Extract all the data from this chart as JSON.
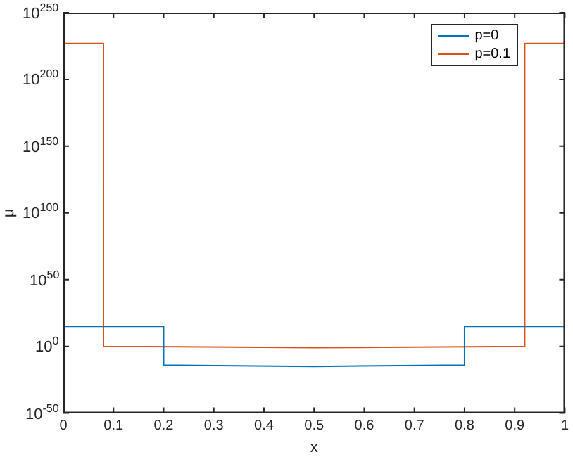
{
  "chart_data": {
    "type": "line",
    "xlabel": "x",
    "ylabel": "μ",
    "log": "y",
    "legend": "top right",
    "xlim": [
      0,
      1
    ],
    "xticks": [
      0,
      0.1,
      0.2,
      0.3,
      0.4,
      0.5,
      0.6,
      0.7,
      0.8,
      0.9,
      1
    ],
    "ylim": [
      1e-50,
      1e+250
    ],
    "yticks": [
      {
        "value": 1e-50,
        "label": "10$^{-50}$"
      },
      {
        "value": 1,
        "label": "10$^{0}$"
      },
      {
        "value": 1e+50,
        "label": "10$^{50}$"
      },
      {
        "value": 1e+100,
        "label": "10$^{100}$"
      },
      {
        "value": 1e+150,
        "label": "10$^{150}$"
      },
      {
        "value": 1e+200,
        "label": "10$^{200}$"
      },
      {
        "value": 1e+250,
        "label": "10$^{250}$"
      }
    ],
    "series": [
      {
        "name": "p=0",
        "color": "#0072bd",
        "x": [
          0,
          0.2,
          0.2,
          0.5,
          0.8,
          0.8,
          1
        ],
        "values": [
          1000000000000000.0,
          1000000000000000.0,
          1e-14,
          1e-15,
          1e-14,
          1000000000000000.0,
          1000000000000000.0
        ]
      },
      {
        "name": "p=0.1",
        "color": "#d95319",
        "x": [
          0,
          0.08,
          0.08,
          0.5,
          0.92,
          0.92,
          1
        ],
        "values": [
          1e+227,
          1e+227,
          1,
          0.1,
          1,
          1e+227,
          1e+227
        ]
      }
    ]
  }
}
